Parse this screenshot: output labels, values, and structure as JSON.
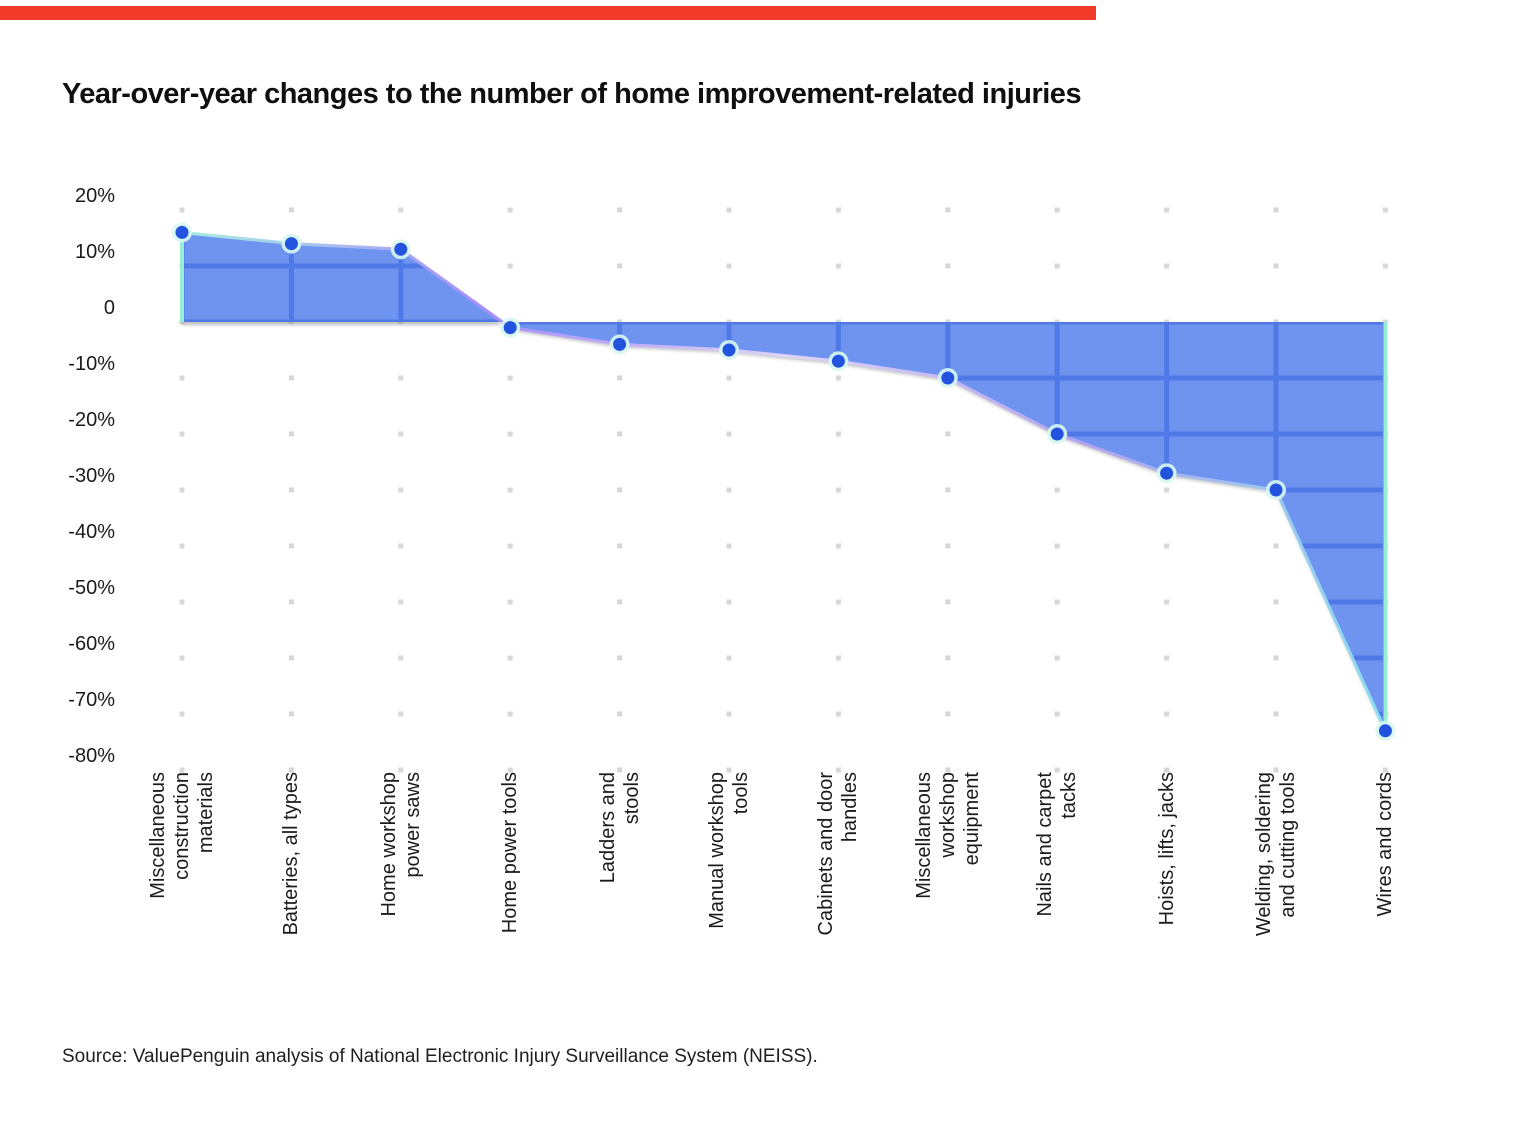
{
  "page": {
    "accent_color": "#f23b2a",
    "title": "Year-over-year changes to the number of home improvement-related injuries",
    "source": "Source: ValuePenguin analysis of National Electronic Injury Surveillance System (NEISS)."
  },
  "chart_data": {
    "type": "area",
    "title": "Year-over-year changes to the number of home improvement-related injuries",
    "categories": [
      "Miscellaneous construction materials",
      "Batteries, all types",
      "Home workshop power saws",
      "Home power tools",
      "Ladders and stools",
      "Manual workshop tools",
      "Cabinets and door handles",
      "Miscellaneous workshop equipment",
      "Nails and carpet tacks",
      "Hoists, lifts, jacks",
      "Welding, soldering and cutting tools",
      "Wires and cords"
    ],
    "category_lines": [
      [
        "Miscellaneous",
        "construction",
        "materials"
      ],
      [
        "Batteries, all types"
      ],
      [
        "Home workshop",
        "power saws"
      ],
      [
        "Home power tools"
      ],
      [
        "Ladders and",
        "stools"
      ],
      [
        "Manual workshop",
        "tools"
      ],
      [
        "Cabinets and door",
        "handles"
      ],
      [
        "Miscellaneous",
        "workshop",
        "equipment"
      ],
      [
        "Nails and carpet",
        "tacks"
      ],
      [
        "Hoists, lifts, jacks"
      ],
      [
        "Welding, soldering",
        "and cutting tools"
      ],
      [
        "Wires and cords"
      ]
    ],
    "values": [
      16,
      14,
      13,
      -1,
      -4,
      -5,
      -7,
      -10,
      -20,
      -27,
      -30,
      -73
    ],
    "unit": "percent",
    "y_ticks": [
      "20%",
      "10%",
      "0",
      "-10%",
      "-20%",
      "-30%",
      "-40%",
      "-50%",
      "-60%",
      "-70%",
      "-80%"
    ],
    "y_tick_values": [
      20,
      10,
      0,
      -10,
      -20,
      -30,
      -40,
      -50,
      -60,
      -70,
      -80
    ],
    "ylim": [
      -80,
      20
    ],
    "xlabel": "",
    "ylabel": "",
    "legend": "none",
    "grid": "dotted intersections outside fill; blue gridlines visible through fill",
    "colors": {
      "fill": "#6e94f0",
      "grid_line": "#4f79e7",
      "grid_dot": "#d7d7d7",
      "point": "#2353de",
      "point_halo": "#d6f6f2",
      "edge_accent": "#97eed2",
      "line_gradient": [
        "#a7f0e0",
        "#a78bfa",
        "#e0d6fb",
        "#b4a3f0",
        "#8ce0ef"
      ]
    }
  }
}
